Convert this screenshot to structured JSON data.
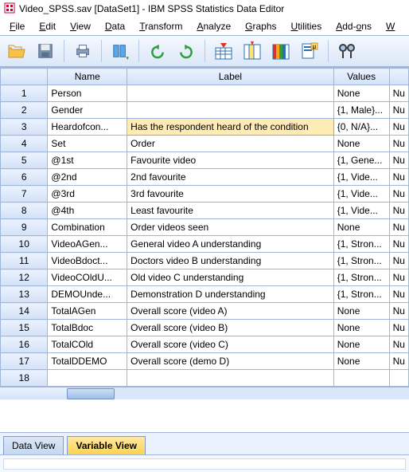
{
  "window_title": "Video_SPSS.sav [DataSet1] - IBM SPSS Statistics Data Editor",
  "menus": [
    "File",
    "Edit",
    "View",
    "Data",
    "Transform",
    "Analyze",
    "Graphs",
    "Utilities",
    "Add-ons",
    "W"
  ],
  "columns": {
    "row": "",
    "name": "Name",
    "label": "Label",
    "values": "Values",
    "extra": ""
  },
  "rows": [
    {
      "n": "1",
      "name": "Person",
      "label": "",
      "values": "None",
      "x": "Nu"
    },
    {
      "n": "2",
      "name": "Gender",
      "label": "",
      "values": "{1, Male}...",
      "x": "Nu"
    },
    {
      "n": "3",
      "name": "Heardofcon...",
      "label": "Has the respondent heard of the condition",
      "values": "{0, N/A}...",
      "x": "Nu",
      "selected": true
    },
    {
      "n": "4",
      "name": "Set",
      "label": "Order",
      "values": "None",
      "x": "Nu"
    },
    {
      "n": "5",
      "name": "@1st",
      "label": "Favourite video",
      "values": "{1, Gene...",
      "x": "Nu"
    },
    {
      "n": "6",
      "name": "@2nd",
      "label": "2nd favourite",
      "values": "{1, Vide...",
      "x": "Nu"
    },
    {
      "n": "7",
      "name": "@3rd",
      "label": "3rd favourite",
      "values": "{1, Vide...",
      "x": "Nu"
    },
    {
      "n": "8",
      "name": "@4th",
      "label": "Least favourite",
      "values": "{1, Vide...",
      "x": "Nu"
    },
    {
      "n": "9",
      "name": "Combination",
      "label": "Order videos seen",
      "values": "None",
      "x": "Nu"
    },
    {
      "n": "10",
      "name": "VideoAGen...",
      "label": "General video A understanding",
      "values": "{1, Stron...",
      "x": "Nu"
    },
    {
      "n": "11",
      "name": "VideoBdoct...",
      "label": "Doctors video B understanding",
      "values": "{1, Stron...",
      "x": "Nu"
    },
    {
      "n": "12",
      "name": "VideoCOldU...",
      "label": "Old video C understanding",
      "values": "{1, Stron...",
      "x": "Nu"
    },
    {
      "n": "13",
      "name": "DEMOUnde...",
      "label": "Demonstration D understanding",
      "values": "{1, Stron...",
      "x": "Nu"
    },
    {
      "n": "14",
      "name": "TotalAGen",
      "label": "Overall score (video A)",
      "values": "None",
      "x": "Nu"
    },
    {
      "n": "15",
      "name": "TotalBdoc",
      "label": "Overall score (video B)",
      "values": "None",
      "x": "Nu"
    },
    {
      "n": "16",
      "name": "TotalCOld",
      "label": "Overall score (video C)",
      "values": "None",
      "x": "Nu"
    },
    {
      "n": "17",
      "name": "TotalDDEMO",
      "label": "Overall score (demo D)",
      "values": "None",
      "x": "Nu"
    },
    {
      "n": "18",
      "name": "",
      "label": "",
      "values": "",
      "x": ""
    }
  ],
  "tabs": {
    "data": "Data View",
    "variable": "Variable View"
  },
  "colors": {
    "header_grad_top": "#eaf2ff",
    "header_grad_bot": "#d3e2f7",
    "border": "#9fb6d8",
    "selected_bg": "#ffebb5",
    "selected_border": "#c9a545",
    "active_tab_top": "#ffe9a3",
    "active_tab_bot": "#ffd24d"
  }
}
